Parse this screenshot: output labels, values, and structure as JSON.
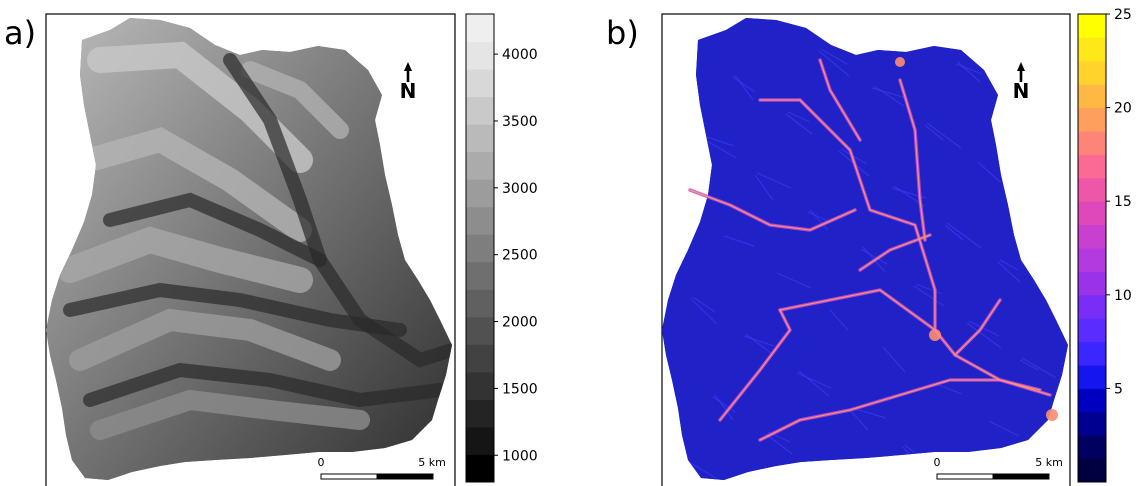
{
  "panels": [
    {
      "id": "a",
      "label": "a)",
      "legend": {
        "palette": "grey",
        "min": 800,
        "max": 4300,
        "ticks": [
          "1000",
          "1500",
          "2000",
          "2500",
          "3000",
          "3500",
          "4000"
        ],
        "tick_values": [
          1000,
          1500,
          2000,
          2500,
          3000,
          3500,
          4000
        ],
        "colors": [
          "#000000",
          "#151515",
          "#242424",
          "#333333",
          "#424242",
          "#515151",
          "#606060",
          "#6f6f6f",
          "#7e7e7e",
          "#8d8d8d",
          "#9c9c9c",
          "#ababab",
          "#bababa",
          "#c9c9c9",
          "#d8d8d8",
          "#e5e5e5",
          "#efefef"
        ]
      },
      "north_label": "N",
      "scalebar": {
        "start": "0",
        "end": "5 km"
      }
    },
    {
      "id": "b",
      "label": "b)",
      "legend": {
        "palette": "plasma",
        "min": 0,
        "max": 25,
        "ticks": [
          "5",
          "10",
          "15",
          "20",
          "25"
        ],
        "tick_values": [
          5,
          10,
          15,
          20,
          25
        ],
        "colors": [
          "#000040",
          "#000060",
          "#000090",
          "#0000c0",
          "#1515f0",
          "#3a26ff",
          "#5a2cff",
          "#7a2df7",
          "#9a32ea",
          "#b23adf",
          "#c840cf",
          "#de48bb",
          "#ee56a8",
          "#fa6a94",
          "#ff8478",
          "#ff9f5c",
          "#ffb843",
          "#ffd22c",
          "#ffe81a",
          "#ffff00"
        ]
      },
      "north_label": "N",
      "scalebar": {
        "start": "0",
        "end": "5 km"
      }
    }
  ]
}
